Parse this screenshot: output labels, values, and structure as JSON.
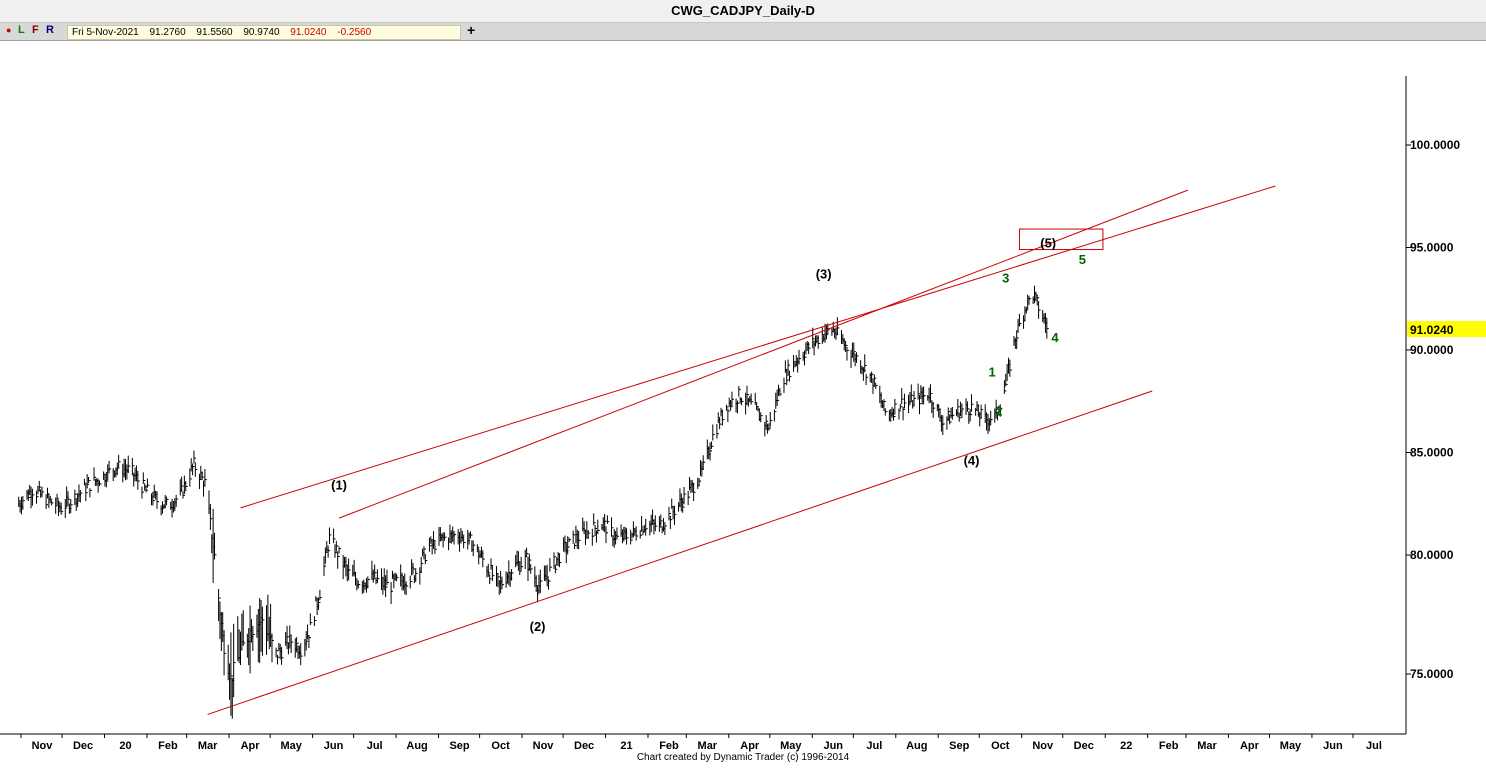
{
  "window": {
    "title": "CWG_CADJPY_Daily-D"
  },
  "toolbar": {
    "buttons": [
      {
        "label": "●",
        "color": "#cc0000"
      },
      {
        "label": "L",
        "color": "#008000"
      },
      {
        "label": "F",
        "color": "#800000"
      },
      {
        "label": "R",
        "color": "#000080"
      }
    ],
    "date": "Fri 5-Nov-2021",
    "open": "91.2760",
    "high": "91.5560",
    "low": "90.9740",
    "close": "91.0240",
    "change": "-0.2560",
    "add_label": "+"
  },
  "footer": "Chart created by Dynamic Trader  (c)  1996-2014",
  "chart_data": {
    "type": "bar",
    "title": "CWG_CADJPY_Daily-D",
    "ylim": [
      72.5,
      102.5
    ],
    "y_ticks": [
      "100.0000",
      "95.0000",
      "90.0000",
      "85.0000",
      "80.0000",
      "75.0000"
    ],
    "y_tick_values": [
      100,
      95,
      90,
      85,
      80,
      75
    ],
    "last_price_label": "91.0240",
    "last_price": 91.024,
    "x_tick_labels": [
      "Nov",
      "Dec",
      "20",
      "Feb",
      "Mar",
      "Apr",
      "May",
      "Jun",
      "Jul",
      "Aug",
      "Sep",
      "Oct",
      "Nov",
      "Dec",
      "21",
      "Feb",
      "Mar",
      "Apr",
      "May",
      "Jun",
      "Jul",
      "Aug",
      "Sep",
      "Oct",
      "Nov",
      "Dec",
      "22",
      "Feb",
      "Mar",
      "Apr",
      "May",
      "Jun",
      "Jul"
    ],
    "x_tick_dates": [
      "2019-11-01",
      "2019-12-01",
      "2020-01-01",
      "2020-02-01",
      "2020-03-01",
      "2020-04-01",
      "2020-05-01",
      "2020-06-01",
      "2020-07-01",
      "2020-08-01",
      "2020-09-01",
      "2020-10-01",
      "2020-11-01",
      "2020-12-01",
      "2021-01-01",
      "2021-02-01",
      "2021-03-01",
      "2021-04-01",
      "2021-05-01",
      "2021-06-01",
      "2021-07-01",
      "2021-08-01",
      "2021-09-01",
      "2021-10-01",
      "2021-11-01",
      "2021-12-01",
      "2022-01-01",
      "2022-02-01",
      "2022-03-01",
      "2022-04-01",
      "2022-05-01",
      "2022-06-01",
      "2022-07-01"
    ],
    "series": [
      {
        "values_date": [
          "2019-10-15",
          "2019-10-25",
          "2019-11-05",
          "2019-11-15",
          "2019-11-25",
          "2019-12-05",
          "2019-12-15",
          "2019-12-25",
          "2020-01-05",
          "2020-01-15",
          "2020-01-25",
          "2020-02-01",
          "2020-02-10",
          "2020-02-20",
          "2020-02-28",
          "2020-03-05",
          "2020-03-12",
          "2020-03-18",
          "2020-03-24",
          "2020-04-01",
          "2020-04-10",
          "2020-04-20",
          "2020-05-01",
          "2020-05-08",
          "2020-05-15",
          "2020-05-22",
          "2020-05-29",
          "2020-06-05",
          "2020-06-12",
          "2020-06-20",
          "2020-06-30",
          "2020-07-10",
          "2020-07-20",
          "2020-07-31",
          "2020-08-10",
          "2020-08-20",
          "2020-08-31",
          "2020-09-10",
          "2020-09-20",
          "2020-09-30",
          "2020-10-10",
          "2020-10-20",
          "2020-10-30",
          "2020-11-05",
          "2020-11-15",
          "2020-11-25",
          "2020-12-05",
          "2020-12-15",
          "2020-12-25",
          "2021-01-05",
          "2021-01-15",
          "2021-01-25",
          "2021-02-05",
          "2021-02-15",
          "2021-02-25",
          "2021-03-05",
          "2021-03-15",
          "2021-03-25",
          "2021-04-05",
          "2021-04-15",
          "2021-04-25",
          "2021-05-05",
          "2021-05-15",
          "2021-05-25",
          "2021-06-01",
          "2021-06-10",
          "2021-06-20",
          "2021-06-30",
          "2021-07-10",
          "2021-07-20",
          "2021-07-30",
          "2021-08-10",
          "2021-08-20",
          "2021-08-31",
          "2021-09-10",
          "2021-09-20",
          "2021-09-28",
          "2021-10-05",
          "2021-10-12",
          "2021-10-20",
          "2021-10-25",
          "2021-10-29",
          "2021-11-05"
        ],
        "values_close": [
          82.5,
          83.2,
          82.7,
          82.3,
          82.8,
          83.4,
          83.8,
          84.3,
          84.1,
          83.2,
          82.6,
          82.4,
          82.9,
          84.4,
          83.5,
          80.5,
          76.5,
          74.8,
          75.8,
          76.8,
          77.3,
          75.8,
          76.4,
          76.1,
          76.9,
          78.5,
          80.8,
          80.0,
          79.2,
          78.9,
          79.0,
          78.7,
          78.9,
          79.3,
          80.4,
          80.8,
          81.0,
          80.6,
          79.6,
          78.7,
          79.5,
          79.8,
          78.6,
          79.2,
          80.2,
          80.8,
          81.2,
          81.5,
          80.8,
          81.0,
          81.5,
          81.4,
          82.2,
          83.0,
          84.0,
          85.8,
          87.3,
          87.8,
          87.1,
          86.2,
          88.6,
          89.5,
          90.2,
          90.8,
          91.0,
          90.2,
          89.5,
          88.5,
          86.8,
          87.4,
          87.5,
          87.9,
          86.5,
          87.0,
          87.2,
          86.6,
          86.8,
          88.3,
          90.6,
          92.2,
          92.7,
          92.1,
          91.0
        ]
      }
    ],
    "wave_labels": [
      {
        "text": "(1)",
        "date": "2020-06-05",
        "y": 83.2,
        "color": "#000000"
      },
      {
        "text": "(2)",
        "date": "2020-10-28",
        "y": 76.8,
        "color": "#000000"
      },
      {
        "text": "(3)",
        "date": "2021-05-25",
        "y": 93.5,
        "color": "#000000"
      },
      {
        "text": "(4)",
        "date": "2021-09-10",
        "y": 84.4,
        "color": "#000000"
      },
      {
        "text": "(5)",
        "date": "2021-11-05",
        "y": 95.0,
        "color": "#000000"
      },
      {
        "text": "1",
        "date": "2021-09-25",
        "y": 88.7,
        "color": "#006400"
      },
      {
        "text": "2",
        "date": "2021-09-30",
        "y": 86.8,
        "color": "#006400"
      },
      {
        "text": "3",
        "date": "2021-10-05",
        "y": 93.3,
        "color": "#006400"
      },
      {
        "text": "4",
        "date": "2021-11-10",
        "y": 90.4,
        "color": "#006400"
      },
      {
        "text": "5",
        "date": "2021-11-30",
        "y": 94.2,
        "color": "#006400"
      }
    ],
    "trend_lines_color": "#cc0000",
    "trend_lines": [
      {
        "start_date": "2020-03-01",
        "start_y": 73.3,
        "end_date": "2022-01-20",
        "end_y": 88.0
      },
      {
        "start_date": "2020-03-25",
        "start_y": 82.3,
        "end_date": "2022-04-20",
        "end_y": 98.0
      },
      {
        "start_date": "2020-06-05",
        "start_y": 81.8,
        "end_date": "2022-02-15",
        "end_y": 97.8
      }
    ],
    "target_box": {
      "start_date": "2021-10-15",
      "end_date": "2021-12-15",
      "y_low": 94.9,
      "y_high": 95.9
    },
    "grid": false
  }
}
